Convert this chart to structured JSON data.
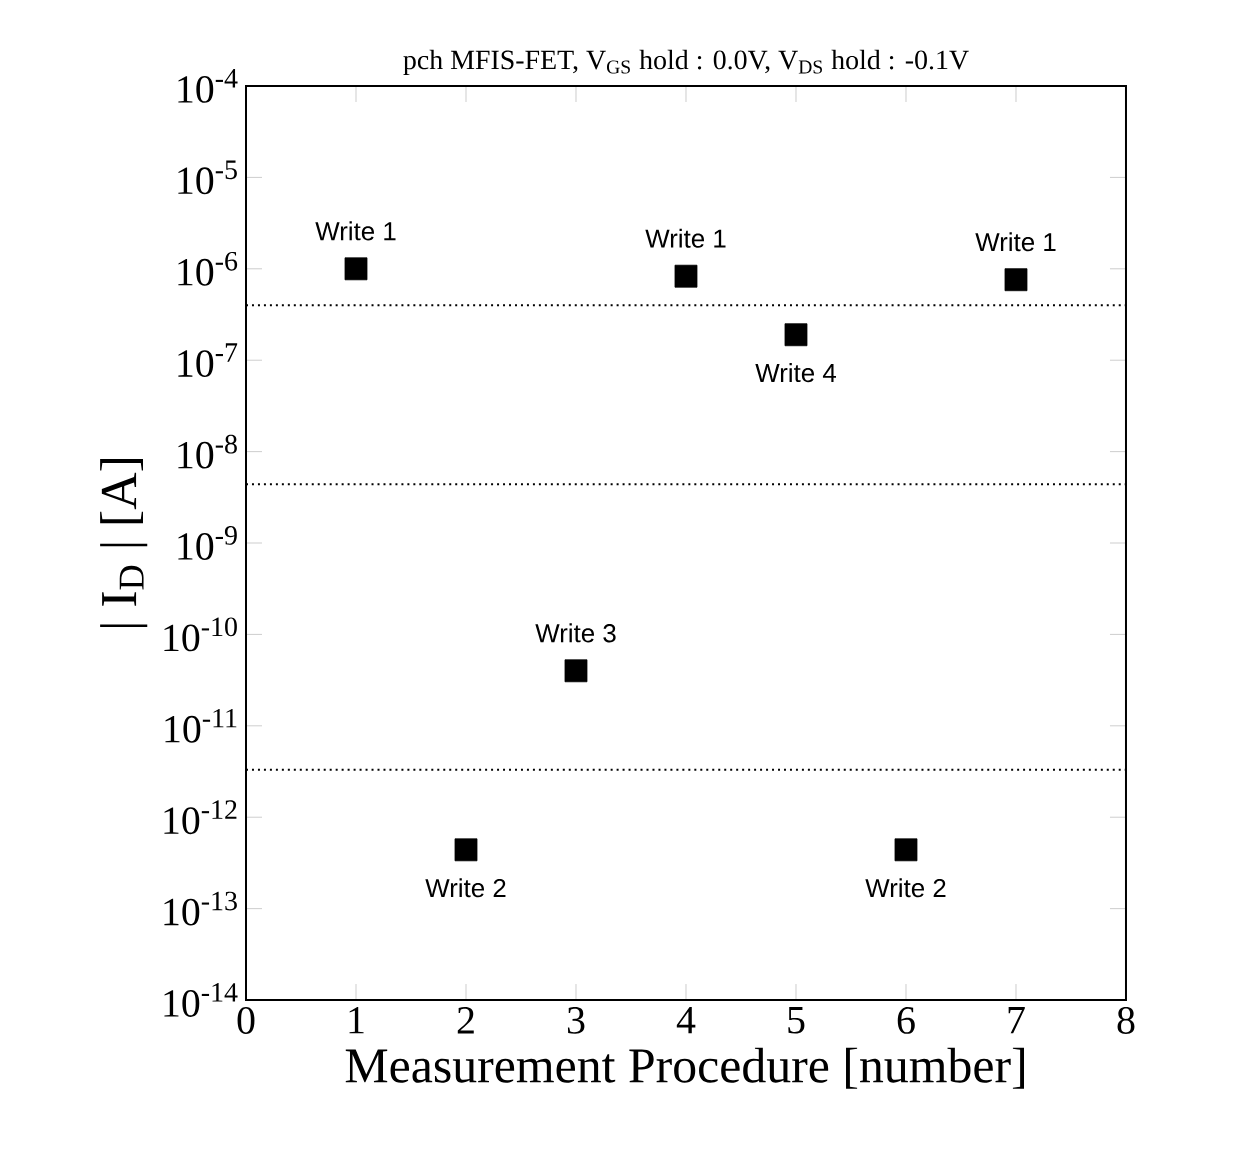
{
  "chart_data": {
    "type": "scatter",
    "title": "pch MFIS-FET,  V$_{GS}$ hold : 0.0V,  V$_{DS}$ hold : -0.1V",
    "xlabel": "Measurement Procedure [number]",
    "ylabel": "| I$_{D}$ | [A]",
    "x": [
      1,
      2,
      3,
      4,
      5,
      6,
      7
    ],
    "values": [
      1e-06,
      4.4e-13,
      4e-11,
      8.3e-07,
      1.9e-07,
      4.4e-13,
      7.6e-07
    ],
    "color": "#000000",
    "marker": "square",
    "log": "y",
    "xlim": [
      0,
      8
    ],
    "xticks": [
      0,
      1,
      2,
      3,
      4,
      5,
      6,
      7,
      8
    ],
    "ylim": [
      1e-14,
      0.0001
    ],
    "yticks": [
      {
        "value": 1e-14,
        "label": "10$^{-14}$"
      },
      {
        "value": 1e-13,
        "label": "10$^{-13}$"
      },
      {
        "value": 1e-12,
        "label": "10$^{-12}$"
      },
      {
        "value": 1e-11,
        "label": "10$^{-11}$"
      },
      {
        "value": 1e-10,
        "label": "10$^{-10}$"
      },
      {
        "value": 1e-09,
        "label": "10$^{-9}$"
      },
      {
        "value": 1e-08,
        "label": "10$^{-8}$"
      },
      {
        "value": 1e-07,
        "label": "10$^{-7}$"
      },
      {
        "value": 1e-06,
        "label": "10$^{-6}$"
      },
      {
        "value": 1e-05,
        "label": "10$^{-5}$"
      },
      {
        "value": 0.0001,
        "label": "10$^{-4}$"
      }
    ],
    "ref_lines": [
      {
        "axis": "y",
        "value": 4e-07,
        "color": "#000000",
        "line_style": "dotted"
      },
      {
        "axis": "y",
        "value": 4.4e-09,
        "color": "#000000",
        "line_style": "dotted"
      },
      {
        "axis": "y",
        "value": 3.3e-12,
        "color": "#000000",
        "line_style": "dotted"
      }
    ],
    "annotations": [
      {
        "text": "Write 1",
        "x": 1,
        "y": 1e-06
      },
      {
        "text": "Write 2",
        "x": 2,
        "y": 4.4e-13
      },
      {
        "text": "Write 3",
        "x": 3,
        "y": 4e-11
      },
      {
        "text": "Write 1",
        "x": 4,
        "y": 8.3e-07
      },
      {
        "text": "Write 4",
        "x": 5,
        "y": 1.9e-07
      },
      {
        "text": "Write 2",
        "x": 6,
        "y": 4.4e-13
      },
      {
        "text": "Write 1",
        "x": 7,
        "y": 7.6e-07
      }
    ]
  }
}
